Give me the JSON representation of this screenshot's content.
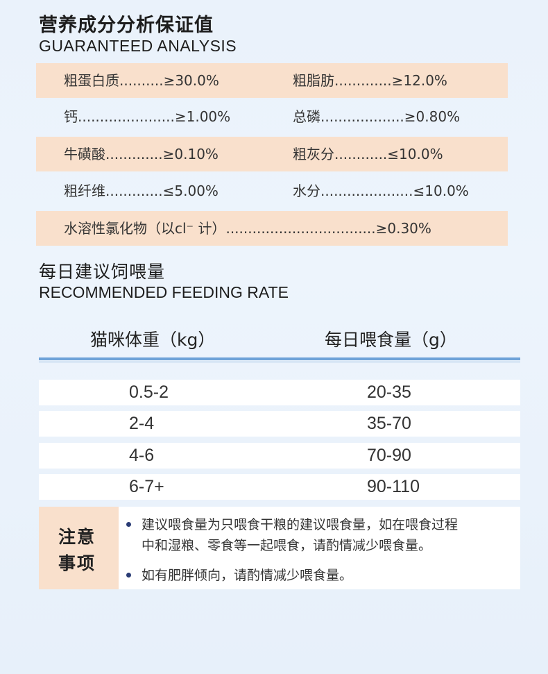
{
  "header": {
    "title_cn": "营养成分分析保证值",
    "title_en": "GUARANTEED ANALYSIS"
  },
  "analysis": [
    {
      "left": "粗蛋白质..........≥30.0%",
      "right": "粗脂肪.............≥12.0%"
    },
    {
      "left": "钙......................≥1.00%",
      "right": "总磷...................≥0.80%"
    },
    {
      "left": "牛磺酸.............≥0.10%",
      "right": "粗灰分............≤10.0%"
    },
    {
      "left": "粗纤维.............≤5.00%",
      "right": "水分.....................≤10.0%"
    },
    {
      "full": "水溶性氯化物（以cl⁻ 计）..................................≥0.30%"
    }
  ],
  "feeding": {
    "title_cn": "每日建议饲喂量",
    "title_en": "RECOMMENDED FEEDING RATE",
    "col1_header": "猫咪体重（kg）",
    "col2_header": "每日喂食量（g）",
    "rows": [
      {
        "weight": "0.5-2",
        "amount": "20-35"
      },
      {
        "weight": "2-4",
        "amount": "35-70"
      },
      {
        "weight": "4-6",
        "amount": "70-90"
      },
      {
        "weight": "6-7+",
        "amount": "90-110"
      }
    ]
  },
  "notes": {
    "label_line1": "注意",
    "label_line2": "事项",
    "item1_line1": "建议喂食量为只喂食干粮的建议喂食量，如在喂食过程",
    "item1_line2": "中和湿粮、零食等一起喂食，请酌情减少喂食量。",
    "item2": "如有肥胖倾向，请酌情减少喂食量。"
  },
  "colors": {
    "highlight_row": "#f9e0cc",
    "rule": "#6ea2d8",
    "bullet": "#2a3c75"
  }
}
